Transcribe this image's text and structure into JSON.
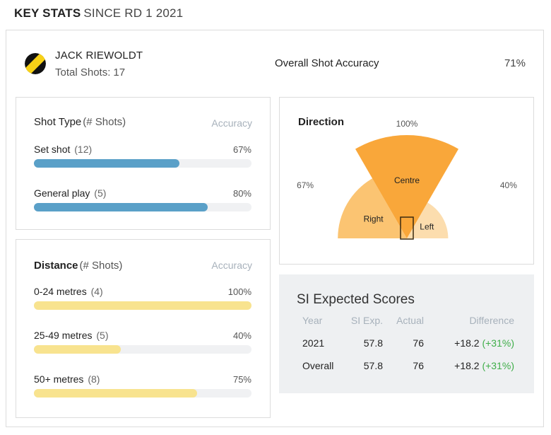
{
  "header": {
    "title": "KEY STATS",
    "subtitle": "SINCE RD 1 2021"
  },
  "player": {
    "name": "JACK RIEWOLDT",
    "total_shots_label": "Total Shots:",
    "total_shots": "17",
    "logo_colors": {
      "stripe": "#f7d117",
      "base": "#111111"
    }
  },
  "overall": {
    "label": "Overall Shot Accuracy",
    "value": "71%"
  },
  "shot_type": {
    "title": "Shot Type",
    "subtitle": "(# Shots)",
    "accuracy_label": "Accuracy",
    "rows": [
      {
        "label": "Set shot",
        "count": "(12)",
        "pct": "67%",
        "value": 0.67
      },
      {
        "label": "General play",
        "count": "(5)",
        "pct": "80%",
        "value": 0.8
      }
    ]
  },
  "distance": {
    "title": "Distance",
    "subtitle": "(# Shots)",
    "accuracy_label": "Accuracy",
    "rows": [
      {
        "label": "0-24 metres",
        "count": "(4)",
        "pct": "100%",
        "value": 1.0
      },
      {
        "label": "25-49 metres",
        "count": "(5)",
        "pct": "40%",
        "value": 0.4
      },
      {
        "label": "50+ metres",
        "count": "(8)",
        "pct": "75%",
        "value": 0.75
      }
    ]
  },
  "direction": {
    "title": "Direction",
    "segments": [
      {
        "label": "Right",
        "pct": "67%",
        "value": 0.67,
        "color": "#fbc472"
      },
      {
        "label": "Centre",
        "pct": "100%",
        "value": 1.0,
        "color": "#f9a73a"
      },
      {
        "label": "Left",
        "pct": "40%",
        "value": 0.4,
        "color": "#fcddae"
      }
    ]
  },
  "si_expected": {
    "title": "SI Expected Scores",
    "columns": [
      "Year",
      "SI Exp.",
      "Actual",
      "Difference"
    ],
    "rows": [
      {
        "year": "2021",
        "si_exp": "57.8",
        "actual": "76",
        "diff": "+18.2",
        "diff_pct": "(+31%)"
      },
      {
        "year": "Overall",
        "si_exp": "57.8",
        "actual": "76",
        "diff": "+18.2",
        "diff_pct": "(+31%)"
      }
    ]
  },
  "colors": {
    "bar_blue": "#5aa0c8",
    "bar_yellow": "#f8e38f",
    "positive_green": "#3fae49",
    "muted_text": "#a7b1bb"
  }
}
